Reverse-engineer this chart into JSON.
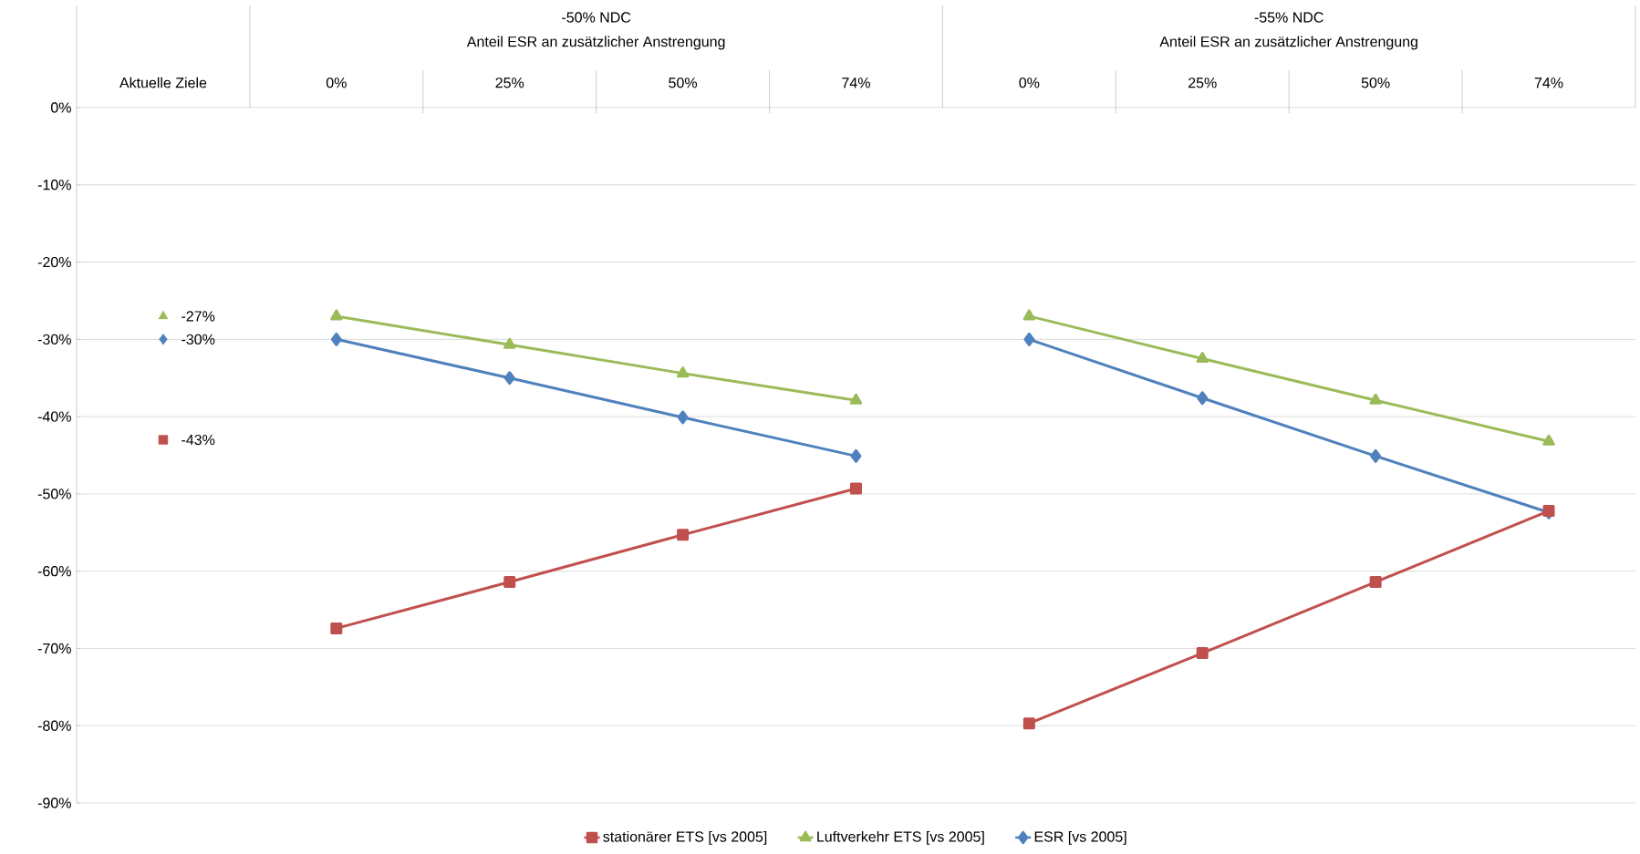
{
  "chart_data": {
    "type": "line",
    "categories": [
      "Aktuelle Ziele",
      "0%",
      "25%",
      "50%",
      "74%",
      "0%",
      "25%",
      "50%",
      "74%"
    ],
    "annotations": [
      "-50% NDC",
      "Anteil ESR an zusätzlicher Anstrengung",
      "-55% NDC",
      "Anteil ESR an zusätzlicher Anstrengung"
    ],
    "ylim": [
      -90,
      0
    ],
    "yticks": [
      {
        "value": -90,
        "label": "-90%"
      },
      {
        "value": -80,
        "label": "-80%"
      },
      {
        "value": -70,
        "label": "-70%"
      },
      {
        "value": -60,
        "label": "-60%"
      },
      {
        "value": -50,
        "label": "-50%"
      },
      {
        "value": -40,
        "label": "-40%"
      },
      {
        "value": -30,
        "label": "-30%"
      },
      {
        "value": -20,
        "label": "-20%"
      },
      {
        "value": -10,
        "label": "-10%"
      },
      {
        "value": 0,
        "label": "0%"
      }
    ],
    "grid": "y",
    "legend": "bottom",
    "series": [
      {
        "name": "stationärer ETS [vs 2005]",
        "marker": "square",
        "color": "#c0504d",
        "values": [
          null,
          -67.4,
          -61.4,
          -55.3,
          -49.3,
          null,
          null,
          null,
          null
        ]
      },
      {
        "name": "Luftverkehr ETS [vs 2005]",
        "marker": "triangle",
        "color": "#9bbb59",
        "values": [
          null,
          -27,
          -30.7,
          -34.4,
          -37.9,
          null,
          null,
          null,
          null
        ]
      },
      {
        "name": "ESR [vs 2005]",
        "marker": "diamond",
        "color": "#4f81bd",
        "values": [
          null,
          -30,
          -35,
          -40.1,
          -45.1,
          null,
          null,
          null,
          null
        ]
      },
      {
        "marker": "triangle",
        "color": "#9bbb59",
        "values": [
          null,
          null,
          null,
          null,
          null,
          -27,
          -32.5,
          -37.9,
          -43.2
        ]
      },
      {
        "marker": "diamond",
        "color": "#4f81bd",
        "values": [
          null,
          null,
          null,
          null,
          null,
          -30,
          -37.6,
          -45.1,
          -52.4
        ]
      },
      {
        "marker": "square",
        "color": "#c0504d",
        "values": [
          null,
          null,
          null,
          null,
          null,
          -79.7,
          -70.6,
          -61.4,
          -52.2
        ]
      },
      {
        "type": "scatter",
        "marker": "square",
        "color": "#c0504d",
        "values": [
          -43,
          null,
          null,
          null,
          null,
          null,
          null,
          null,
          null
        ],
        "value_labels": [
          "-43%",
          null,
          null,
          null,
          null,
          null,
          null,
          null,
          null
        ]
      },
      {
        "type": "scatter",
        "marker": "triangle",
        "color": "#9bbb59",
        "values": [
          -27,
          null,
          null,
          null,
          null,
          null,
          null,
          null,
          null
        ],
        "value_labels": [
          "-27%",
          null,
          null,
          null,
          null,
          null,
          null,
          null,
          null
        ]
      },
      {
        "type": "scatter",
        "marker": "diamond",
        "color": "#4f81bd",
        "values": [
          -30,
          null,
          null,
          null,
          null,
          null,
          null,
          null,
          null
        ],
        "value_labels": [
          "-30%",
          null,
          null,
          null,
          null,
          null,
          null,
          null,
          null
        ]
      }
    ]
  }
}
